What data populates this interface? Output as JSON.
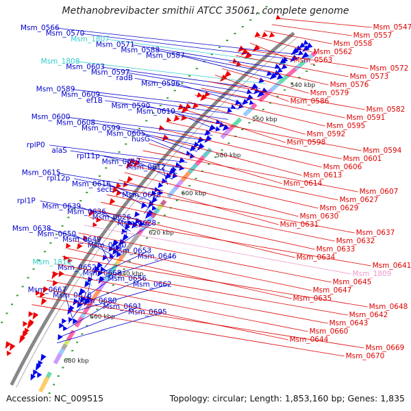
{
  "title": "Methanobrevibacter smithii ATCC 35061, complete genome",
  "footer": {
    "accession_prefix": "Accession: ",
    "accession": "NC_009515",
    "summary": "Topology: circular; Length: 1,853,160 bp; Genes: 1,835"
  },
  "colors": {
    "left_labels": "#0000cc",
    "right_labels": "#dd0000",
    "rna_labels": "#33cccc",
    "pink_label": "#ee99cc",
    "backbone": "#888888",
    "tick": "#339933"
  },
  "ticks": [
    "540 kbp",
    "560 kbp",
    "580 kbp",
    "600 kbp",
    "620 kbp",
    "640 kbp",
    "660 kbp",
    "680 kbp"
  ],
  "left_labels": [
    "Msm_0566",
    "Msm_0570",
    "Msm_1807",
    "Msm_0571",
    "Msm_0588",
    "Msm_0587",
    "Msm_1808",
    "Msm_0603",
    "Msm_0597",
    "radB",
    "Msm_0596",
    "Msm_0589",
    "Msm_0609",
    "ef1B",
    "Msm_0590",
    "Msm_0610",
    "Msm_0600",
    "Msm_0608",
    "Msm_0599",
    "Msm_0605",
    "nusG",
    "rplP0",
    "alaS",
    "rpl11p",
    "Msm_0617",
    "Msm_0612",
    "Msm_0615",
    "rpl12p",
    "Msm_0616",
    "secE",
    "Msm_0618",
    "rpl1P",
    "Msm_0639",
    "Msm_0636",
    "Msm_0626",
    "Msm_0628",
    "Msm_0638",
    "Msm_0650",
    "Msm_0649",
    "Msm_0640",
    "Msm_0653",
    "Msm_0646",
    "Msm_1810",
    "Msm_0652",
    "Msm_0668",
    "Msm_0656",
    "Msm_0662",
    "Msm_0667",
    "Msm_0676",
    "Msm_0680",
    "Msm_0691",
    "Msm_0695"
  ],
  "right_labels": [
    "Msm_0547",
    "Msm_0557",
    "Msm_0558",
    "Msm_0562",
    "Msm_0563",
    "Msm_0572",
    "Msm_0573",
    "Msm_0576",
    "Msm_0579",
    "Msm_0586",
    "Msm_0582",
    "Msm_0591",
    "Msm_0595",
    "Msm_0592",
    "Msm_0598",
    "Msm_0594",
    "Msm_0601",
    "Msm_0606",
    "Msm_0613",
    "Msm_0614",
    "Msm_0607",
    "Msm_0627",
    "Msm_0629",
    "Msm_0630",
    "Msm_0631",
    "Msm_0637",
    "Msm_0632",
    "Msm_0633",
    "Msm_0634",
    "Msm_0641",
    "Msm_1809",
    "Msm_0645",
    "Msm_0647",
    "Msm_0635",
    "Msm_0648",
    "Msm_0642",
    "Msm_0643",
    "Msm_0660",
    "Msm_0644",
    "Msm_0669",
    "Msm_0670"
  ]
}
